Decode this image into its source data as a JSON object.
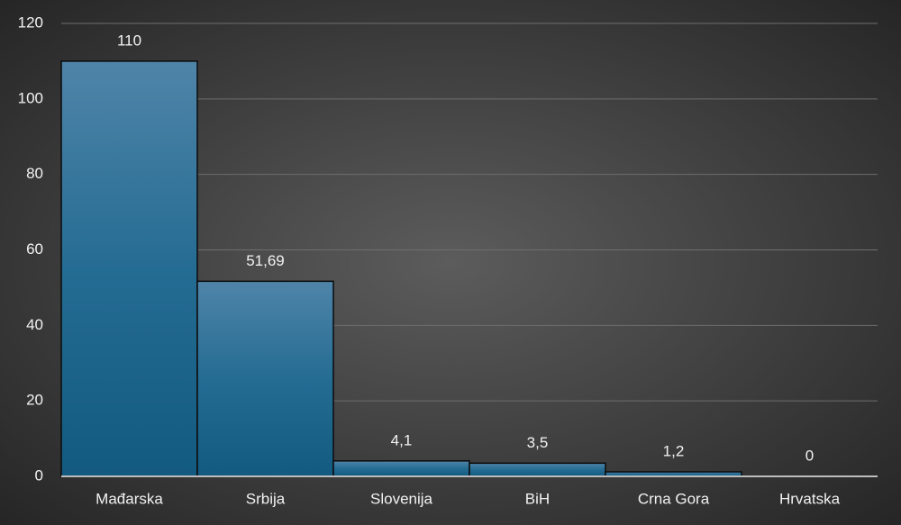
{
  "chart_data": {
    "type": "bar",
    "categories": [
      "Mađarska",
      "Srbija",
      "Slovenija",
      "BiH",
      "Crna Gora",
      "Hrvatska"
    ],
    "values": [
      110,
      51.69,
      4.1,
      3.5,
      1.2,
      0
    ],
    "value_labels": [
      "110",
      "51,69",
      "4,1",
      "3,5",
      "1,2",
      "0"
    ],
    "color": "#1d6690",
    "ylim": [
      0,
      120
    ],
    "yticks": [
      0,
      20,
      40,
      60,
      80,
      100,
      120
    ],
    "grid": true
  }
}
